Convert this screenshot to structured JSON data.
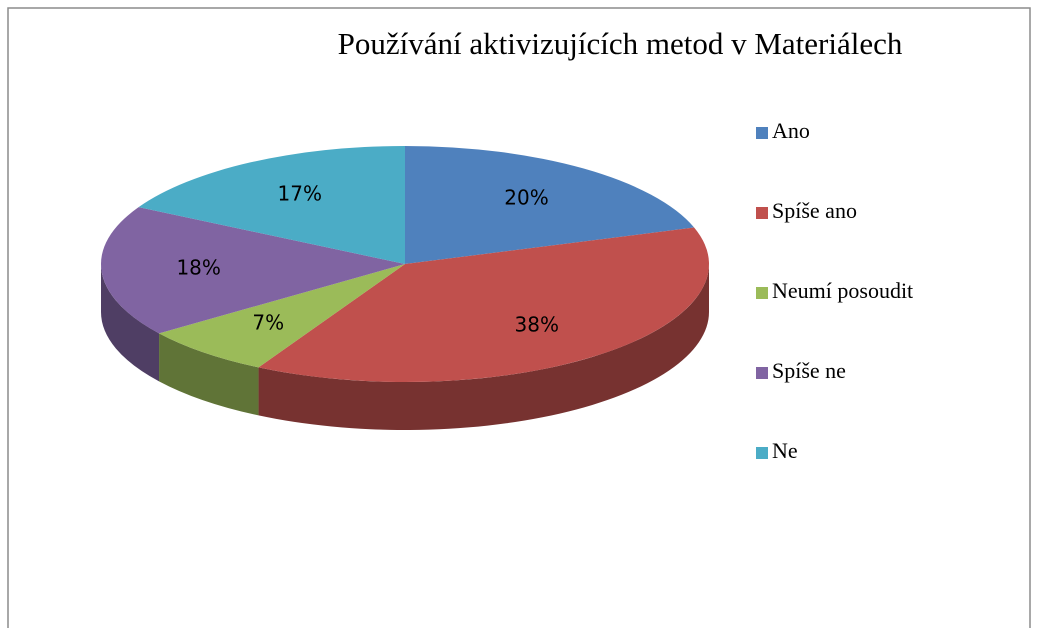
{
  "chart_data": {
    "type": "pie",
    "title": "Používání aktivizujících  metod v Materiálech",
    "categories": [
      "Ano",
      "Spíše ano",
      "Neumí posoudit",
      "Spíše ne",
      "Ne"
    ],
    "values": [
      20,
      38,
      7,
      18,
      17
    ],
    "value_labels": [
      "20%",
      "38%",
      "7%",
      "18%",
      "17%"
    ],
    "colors": [
      "#4f81bd",
      "#c0504d",
      "#9bbb59",
      "#8064a2",
      "#4bacc6"
    ],
    "legend": "right"
  }
}
